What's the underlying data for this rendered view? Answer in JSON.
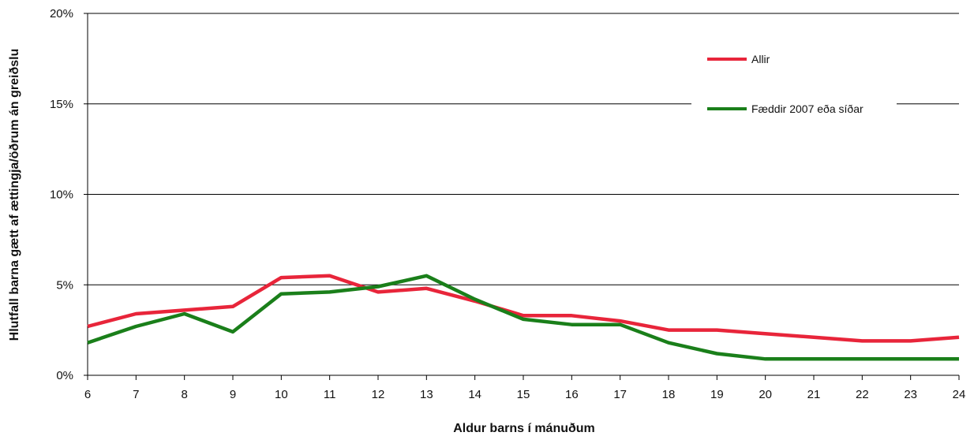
{
  "chart_data": {
    "type": "line",
    "title": "",
    "xlabel": "Aldur barns í mánuðum",
    "ylabel": "Hlutfall barna gætt af ættingja/öðrum án greiðslu",
    "x": [
      6,
      7,
      8,
      9,
      10,
      11,
      12,
      13,
      14,
      15,
      16,
      17,
      18,
      19,
      20,
      21,
      22,
      23,
      24
    ],
    "x_tick_labels": [
      "6",
      "7",
      "8",
      "9",
      "10",
      "11",
      "12",
      "13",
      "14",
      "15",
      "16",
      "17",
      "18",
      "19",
      "20",
      "21",
      "22",
      "23",
      "24"
    ],
    "ylim": [
      0,
      20
    ],
    "y_ticks": [
      0,
      5,
      10,
      15,
      20
    ],
    "y_tick_labels": [
      "0%",
      "5%",
      "10%",
      "15%",
      "20%"
    ],
    "grid": "horizontal",
    "legend_position": "upper-right",
    "series": [
      {
        "name": "Allir",
        "color": "#e8253a",
        "values": [
          2.7,
          3.4,
          3.6,
          3.8,
          5.4,
          5.5,
          4.6,
          4.8,
          4.1,
          3.3,
          3.3,
          3.0,
          2.5,
          2.5,
          2.3,
          2.1,
          1.9,
          1.9,
          2.1
        ]
      },
      {
        "name": "Fæddir 2007 eða síðar",
        "color": "#1a7f1a",
        "values": [
          1.8,
          2.7,
          3.4,
          2.4,
          4.5,
          4.6,
          4.9,
          5.5,
          4.2,
          3.1,
          2.8,
          2.8,
          1.8,
          1.2,
          0.9,
          0.9,
          0.9,
          0.9,
          0.9
        ]
      }
    ]
  }
}
